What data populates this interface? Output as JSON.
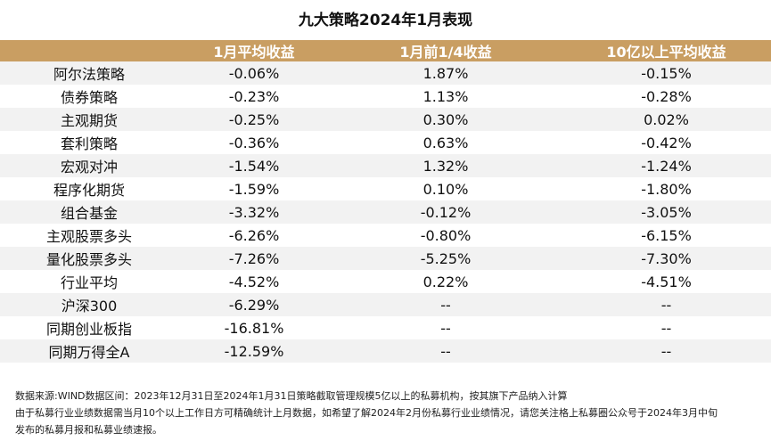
{
  "chart_data": {
    "type": "table",
    "title": "九大策略2024年1月表现",
    "columns": [
      "",
      "1月平均收益",
      "1月前1/4收益",
      "10亿以上平均收益"
    ],
    "rows": [
      [
        "阿尔法策略",
        "-0.06%",
        "1.87%",
        "-0.15%"
      ],
      [
        "债券策略",
        "-0.23%",
        "1.13%",
        "-0.28%"
      ],
      [
        "主观期货",
        "-0.25%",
        "0.30%",
        "0.02%"
      ],
      [
        "套利策略",
        "-0.36%",
        "0.63%",
        "-0.42%"
      ],
      [
        "宏观对冲",
        "-1.54%",
        "1.32%",
        "-1.24%"
      ],
      [
        "程序化期货",
        "-1.59%",
        "0.10%",
        "-1.80%"
      ],
      [
        "组合基金",
        "-3.32%",
        "-0.12%",
        "-3.05%"
      ],
      [
        "主观股票多头",
        "-6.26%",
        "-0.80%",
        "-6.15%"
      ],
      [
        "量化股票多头",
        "-7.26%",
        "-5.25%",
        "-7.30%"
      ],
      [
        "行业平均",
        "-4.52%",
        "0.22%",
        "-4.51%"
      ],
      [
        "沪深300",
        "-6.29%",
        "--",
        "--"
      ],
      [
        "同期创业板指",
        "-16.81%",
        "--",
        "--"
      ],
      [
        "同期万得全A",
        "-12.59%",
        "--",
        "--"
      ]
    ],
    "header_color": "#c99e62",
    "stripe_color": "#f2f2f2"
  },
  "notes": [
    "数据来源:WIND数据区间：2023年12月31日至2024年1月31日策略截取管理规模5亿以上的私募机构，按其旗下产品纳入计算",
    "由于私募行业业绩数据需当月10个以上工作日方可精确统计上月数据，如希望了解2024年2月份私募行业业绩情况，请您关注格上私募圈公众号于2024年3月中旬",
    "发布的私募月报和私募业绩速报。"
  ]
}
